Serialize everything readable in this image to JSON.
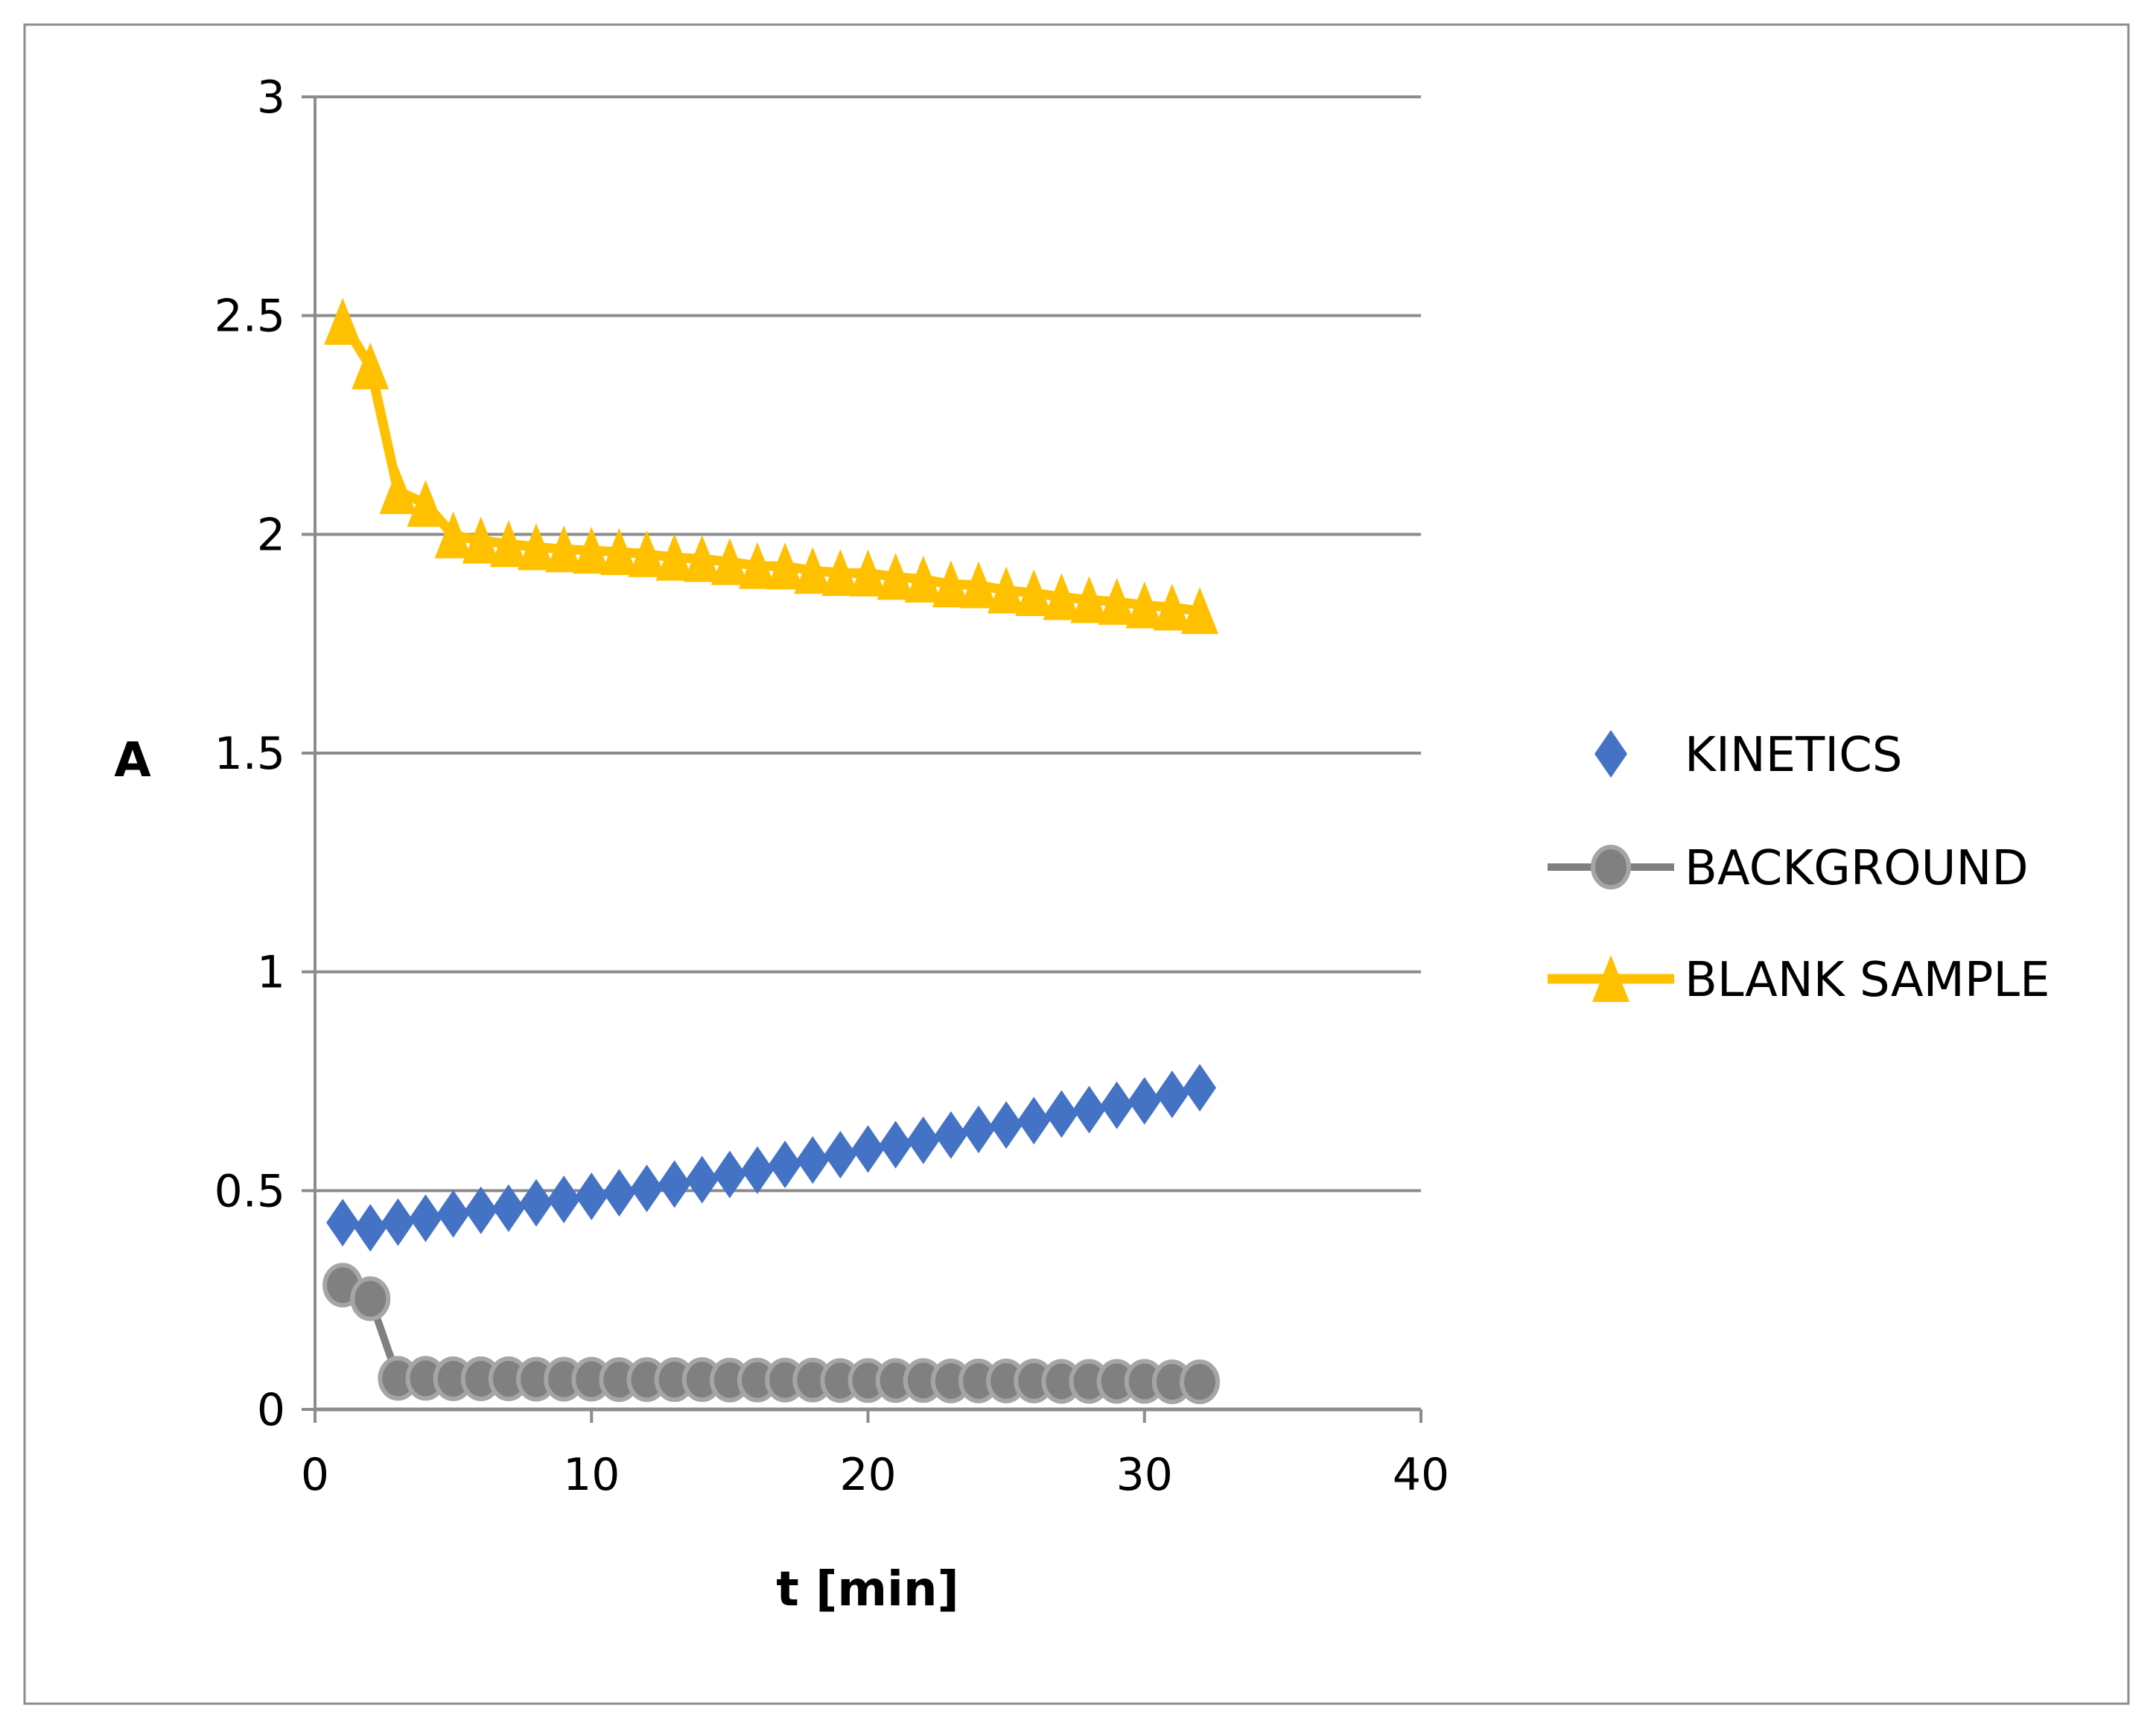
{
  "chart_data": {
    "type": "line",
    "title": "",
    "xlabel": "t [min]",
    "ylabel": "A",
    "xlim": [
      0,
      40
    ],
    "ylim": [
      0,
      3
    ],
    "xticks": [
      0,
      10,
      20,
      30,
      40
    ],
    "yticks": [
      0,
      0.5,
      1,
      1.5,
      2,
      2.5,
      3
    ],
    "ytick_labels": [
      "0",
      "0.5",
      "1",
      "1.5",
      "2",
      "2.5",
      "3"
    ],
    "grid": "horizontal",
    "legend_position": "right",
    "x": [
      1,
      2,
      3,
      4,
      5,
      6,
      7,
      8,
      9,
      10,
      11,
      12,
      13,
      14,
      15,
      16,
      17,
      18,
      19,
      20,
      21,
      22,
      23,
      24,
      25,
      26,
      27,
      28,
      29,
      30,
      31,
      32
    ],
    "series": [
      {
        "name": "KINETICS",
        "color": "#4472c4",
        "marker": "diamond",
        "line": false,
        "values": [
          0.427,
          0.415,
          0.428,
          0.437,
          0.447,
          0.455,
          0.46,
          0.472,
          0.48,
          0.487,
          0.495,
          0.505,
          0.515,
          0.525,
          0.537,
          0.547,
          0.56,
          0.57,
          0.582,
          0.595,
          0.605,
          0.615,
          0.627,
          0.64,
          0.65,
          0.66,
          0.675,
          0.685,
          0.695,
          0.705,
          0.72,
          0.735
        ]
      },
      {
        "name": "BACKGROUND",
        "color": "#808080",
        "marker": "circle",
        "line": true,
        "values": [
          0.284,
          0.253,
          0.071,
          0.071,
          0.07,
          0.07,
          0.07,
          0.069,
          0.069,
          0.069,
          0.068,
          0.068,
          0.068,
          0.068,
          0.067,
          0.067,
          0.067,
          0.067,
          0.066,
          0.066,
          0.066,
          0.066,
          0.065,
          0.065,
          0.065,
          0.065,
          0.064,
          0.064,
          0.064,
          0.064,
          0.063,
          0.063
        ]
      },
      {
        "name": "BLANK SAMPLE",
        "color": "#ffc000",
        "marker": "triangle",
        "line": true,
        "values": [
          2.486,
          2.384,
          2.099,
          2.07,
          1.998,
          1.986,
          1.978,
          1.971,
          1.966,
          1.963,
          1.96,
          1.955,
          1.947,
          1.944,
          1.937,
          1.928,
          1.927,
          1.917,
          1.912,
          1.911,
          1.903,
          1.897,
          1.886,
          1.884,
          1.872,
          1.866,
          1.857,
          1.85,
          1.846,
          1.838,
          1.833,
          1.825
        ]
      }
    ]
  }
}
